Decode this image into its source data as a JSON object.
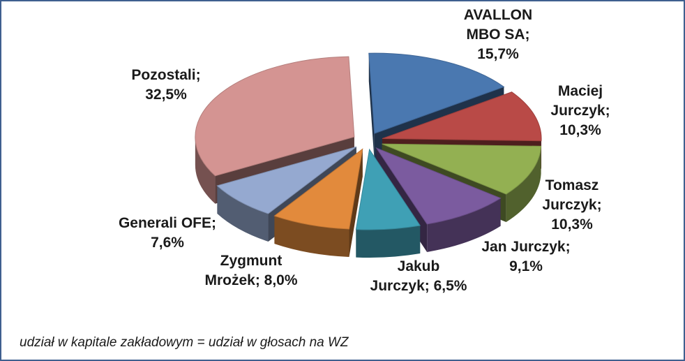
{
  "chart_data": {
    "type": "pie",
    "style": "3d-exploded",
    "legend": "none",
    "slices": [
      {
        "label": [
          "AVALLON",
          "MBO SA;",
          "15,7%"
        ],
        "value": 15.7,
        "color": "#4a78b0"
      },
      {
        "label": [
          "Maciej",
          "Jurczyk;",
          "10,3%"
        ],
        "value": 10.3,
        "color": "#b94a47"
      },
      {
        "label": [
          "Tomasz",
          "Jurczyk;",
          "10,3%"
        ],
        "value": 10.3,
        "color": "#93b052"
      },
      {
        "label": [
          "Jan Jurczyk;",
          "9,1%"
        ],
        "value": 9.1,
        "color": "#7b5b9f"
      },
      {
        "label": [
          "Jakub",
          "Jurczyk; 6,5%"
        ],
        "value": 6.5,
        "color": "#3fa0b5"
      },
      {
        "label": [
          "Zygmunt",
          "Mrożek; 8,0%"
        ],
        "value": 8.0,
        "color": "#e28a3c"
      },
      {
        "label": [
          "Generali OFE;",
          "7,6%"
        ],
        "value": 7.6,
        "color": "#95a9d0"
      },
      {
        "label": [
          "Pozostali;",
          "32,5%"
        ],
        "value": 32.5,
        "color": "#d49492"
      }
    ],
    "note": "udział w kapitale zakładowym = udział w głosach na WZ"
  }
}
